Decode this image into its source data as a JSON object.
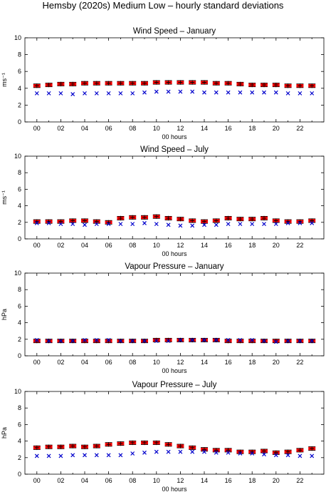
{
  "title": "Hemsby (2020s) Medium Low – hourly standard deviations",
  "colors": {
    "mean": "#000000",
    "range": "#ff0000",
    "observed": "#0000cc"
  },
  "chart_data": [
    {
      "type": "scatter",
      "title": "Wind Speed – January",
      "xlabel": "00 hours",
      "ylabel": "ms⁻¹",
      "xlim": [
        -1,
        24
      ],
      "ylim": [
        0,
        10
      ],
      "xticks": [
        "00",
        "02",
        "04",
        "06",
        "08",
        "10",
        "12",
        "14",
        "16",
        "18",
        "20",
        "22"
      ],
      "yticks": [
        0,
        2,
        4,
        6,
        8,
        10
      ],
      "x": [
        0,
        1,
        2,
        3,
        4,
        5,
        6,
        7,
        8,
        9,
        10,
        11,
        12,
        13,
        14,
        15,
        16,
        17,
        18,
        19,
        20,
        21,
        22,
        23
      ],
      "series": [
        {
          "values": [
            4.3,
            4.4,
            4.5,
            4.5,
            4.6,
            4.6,
            4.6,
            4.6,
            4.6,
            4.6,
            4.7,
            4.7,
            4.7,
            4.7,
            4.7,
            4.6,
            4.6,
            4.5,
            4.4,
            4.4,
            4.4,
            4.3,
            4.3,
            4.3
          ]
        },
        {
          "values": [
            3.4,
            3.4,
            3.4,
            3.3,
            3.4,
            3.4,
            3.4,
            3.4,
            3.4,
            3.5,
            3.6,
            3.6,
            3.6,
            3.6,
            3.5,
            3.5,
            3.5,
            3.5,
            3.5,
            3.5,
            3.5,
            3.4,
            3.4,
            3.4
          ]
        }
      ]
    },
    {
      "type": "scatter",
      "title": "Wind Speed – July",
      "xlabel": "00 hours",
      "ylabel": "ms⁻¹",
      "xlim": [
        -1,
        24
      ],
      "ylim": [
        0,
        10
      ],
      "xticks": [
        "00",
        "02",
        "04",
        "06",
        "08",
        "10",
        "12",
        "14",
        "16",
        "18",
        "20",
        "22"
      ],
      "yticks": [
        0,
        2,
        4,
        6,
        8,
        10
      ],
      "x": [
        0,
        1,
        2,
        3,
        4,
        5,
        6,
        7,
        8,
        9,
        10,
        11,
        12,
        13,
        14,
        15,
        16,
        17,
        18,
        19,
        20,
        21,
        22,
        23
      ],
      "series": [
        {
          "values": [
            2.1,
            2.1,
            2.1,
            2.2,
            2.2,
            2.1,
            2.0,
            2.5,
            2.6,
            2.6,
            2.7,
            2.5,
            2.4,
            2.2,
            2.1,
            2.2,
            2.5,
            2.4,
            2.4,
            2.5,
            2.2,
            2.1,
            2.1,
            2.2
          ]
        },
        {
          "values": [
            1.9,
            1.9,
            1.8,
            1.8,
            1.7,
            1.8,
            1.8,
            1.8,
            1.8,
            1.9,
            1.8,
            1.7,
            1.6,
            1.6,
            1.7,
            1.7,
            1.8,
            1.8,
            1.8,
            1.8,
            1.8,
            1.9,
            1.9,
            1.9
          ]
        }
      ]
    },
    {
      "type": "scatter",
      "title": "Vapour Pressure – January",
      "xlabel": "00 hours",
      "ylabel": "hPa",
      "xlim": [
        -1,
        24
      ],
      "ylim": [
        0,
        10
      ],
      "xticks": [
        "00",
        "02",
        "04",
        "06",
        "08",
        "10",
        "12",
        "14",
        "16",
        "18",
        "20",
        "22"
      ],
      "yticks": [
        0,
        2,
        4,
        6,
        8,
        10
      ],
      "x": [
        0,
        1,
        2,
        3,
        4,
        5,
        6,
        7,
        8,
        9,
        10,
        11,
        12,
        13,
        14,
        15,
        16,
        17,
        18,
        19,
        20,
        21,
        22,
        23
      ],
      "series": [
        {
          "values": [
            1.8,
            1.8,
            1.8,
            1.8,
            1.8,
            1.8,
            1.8,
            1.8,
            1.8,
            1.8,
            1.9,
            1.9,
            1.9,
            1.9,
            1.9,
            1.9,
            1.8,
            1.8,
            1.8,
            1.8,
            1.8,
            1.8,
            1.8,
            1.8
          ]
        },
        {
          "values": [
            1.9,
            1.8,
            1.8,
            1.8,
            1.9,
            1.9,
            1.9,
            1.8,
            1.8,
            1.8,
            1.8,
            1.8,
            1.9,
            1.9,
            1.9,
            1.9,
            1.9,
            1.9,
            1.9,
            1.8,
            1.7,
            1.8,
            1.8,
            1.8
          ]
        }
      ]
    },
    {
      "type": "scatter",
      "title": "Vapour Pressure – July",
      "xlabel": "00 hours",
      "ylabel": "hPa",
      "xlim": [
        -1,
        24
      ],
      "ylim": [
        0,
        10
      ],
      "xticks": [
        "00",
        "02",
        "04",
        "06",
        "08",
        "10",
        "12",
        "14",
        "16",
        "18",
        "20",
        "22"
      ],
      "yticks": [
        0,
        2,
        4,
        6,
        8,
        10
      ],
      "x": [
        0,
        1,
        2,
        3,
        4,
        5,
        6,
        7,
        8,
        9,
        10,
        11,
        12,
        13,
        14,
        15,
        16,
        17,
        18,
        19,
        20,
        21,
        22,
        23
      ],
      "series": [
        {
          "values": [
            3.2,
            3.3,
            3.3,
            3.4,
            3.3,
            3.4,
            3.6,
            3.7,
            3.8,
            3.8,
            3.8,
            3.6,
            3.4,
            3.2,
            3.0,
            2.9,
            2.9,
            2.7,
            2.7,
            2.8,
            2.6,
            2.7,
            2.9,
            3.1
          ]
        },
        {
          "values": [
            2.2,
            2.2,
            2.2,
            2.3,
            2.3,
            2.3,
            2.3,
            2.3,
            2.5,
            2.6,
            2.7,
            2.7,
            2.7,
            2.7,
            2.7,
            2.6,
            2.6,
            2.5,
            2.5,
            2.4,
            2.3,
            2.3,
            2.2,
            2.2
          ]
        }
      ]
    }
  ]
}
